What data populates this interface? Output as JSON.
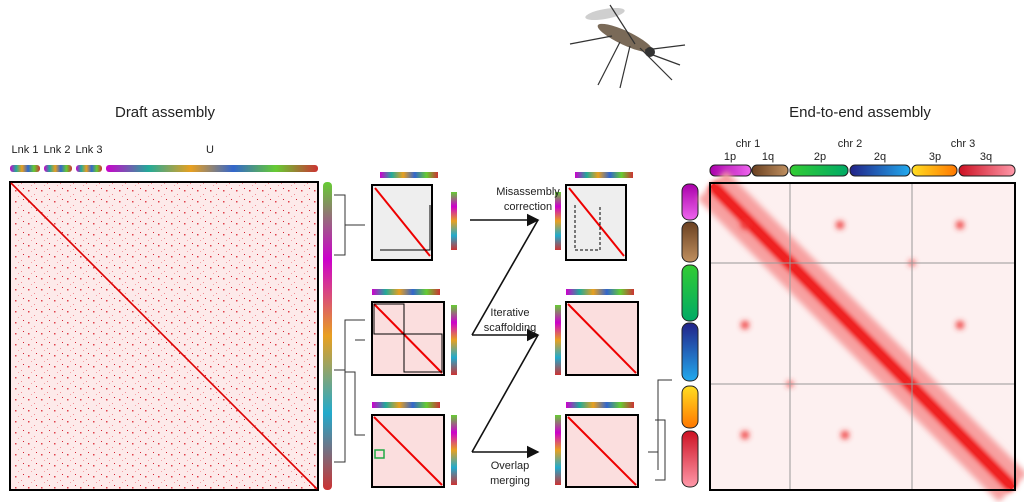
{
  "draft": {
    "title": "Draft assembly",
    "groups": [
      "Lnk 1",
      "Lnk 2",
      "Lnk 3",
      "U"
    ]
  },
  "steps": [
    {
      "lines": [
        "Misassembly",
        "correction"
      ]
    },
    {
      "lines": [
        "Iterative",
        "scaffolding"
      ]
    },
    {
      "lines": [
        "Overlap",
        "merging"
      ]
    }
  ],
  "final": {
    "title": "End-to-end assembly",
    "chromosomes": [
      {
        "name": "chr 1",
        "arms": [
          "1p",
          "1q"
        ]
      },
      {
        "name": "chr 2",
        "arms": [
          "2p",
          "2q"
        ]
      },
      {
        "name": "chr 3",
        "arms": [
          "3p",
          "3q"
        ]
      }
    ]
  }
}
